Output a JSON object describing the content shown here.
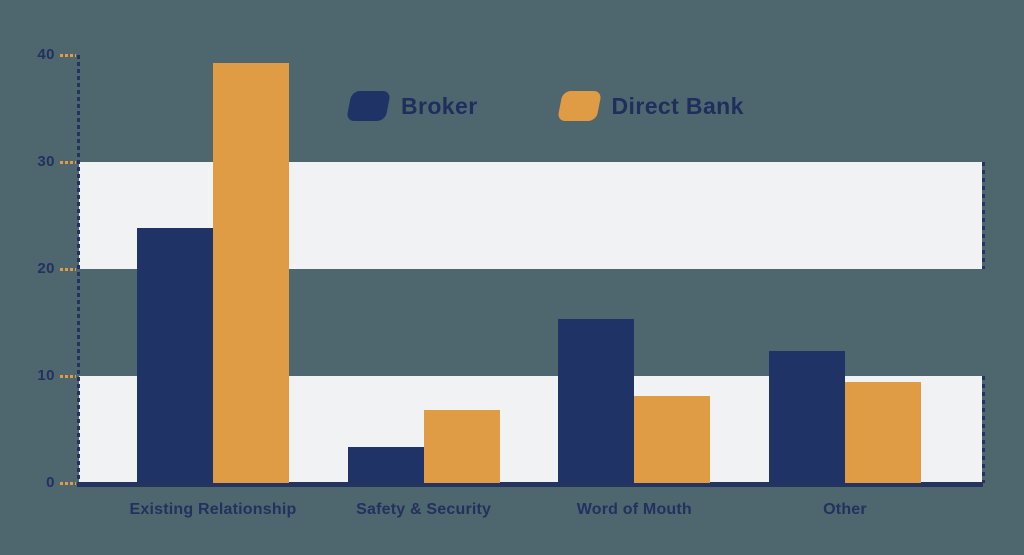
{
  "chart_data": {
    "type": "bar",
    "categories": [
      "Existing Relationship",
      "Safety & Security",
      "Word of Mouth",
      "Other"
    ],
    "series": [
      {
        "name": "Broker",
        "color": "#1f3366",
        "values": [
          23.8,
          3.4,
          15.3,
          12.3
        ]
      },
      {
        "name": "Direct Bank",
        "color": "#df9c45",
        "values": [
          39.3,
          6.8,
          8.1,
          9.4
        ]
      }
    ],
    "ylim": [
      0,
      40
    ],
    "y_ticks": [
      0,
      10,
      20,
      30,
      40
    ],
    "xlabel": "",
    "ylabel": "",
    "legend_position": "top-center",
    "grid": "off",
    "background_bands": [
      [
        0,
        10
      ],
      [
        20,
        30
      ]
    ]
  },
  "colors": {
    "background": "#4e666e",
    "band": "#f1f2f4",
    "navy": "#1f3366",
    "orange": "#df9c45",
    "text": "#23315f"
  }
}
